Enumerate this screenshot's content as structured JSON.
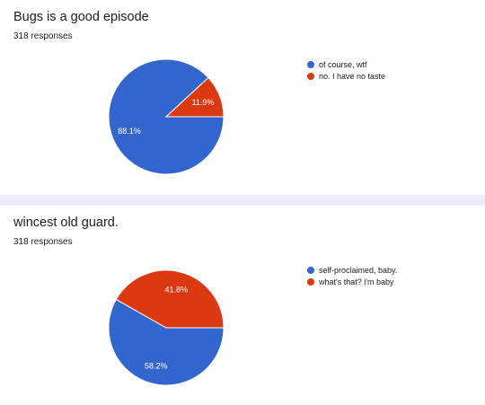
{
  "chart_data": [
    {
      "type": "pie",
      "title": "Bugs is a good episode",
      "subtitle": "318 responses",
      "legend_position": "right",
      "slices": [
        {
          "label": "of course, wtf",
          "value": 88.1,
          "value_label": "88.1%",
          "color": "#3366cc"
        },
        {
          "label": "no. I have no taste",
          "value": 11.9,
          "value_label": "11.9%",
          "color": "#dc3912"
        }
      ]
    },
    {
      "type": "pie",
      "title": "wincest old guard.",
      "subtitle": "318 responses",
      "legend_position": "right",
      "slices": [
        {
          "label": "self-proclaimed, baby.",
          "value": 58.2,
          "value_label": "58.2%",
          "color": "#3366cc"
        },
        {
          "label": "what's that? i'm baby",
          "value": 41.8,
          "value_label": "41.8%",
          "color": "#dc3912"
        }
      ]
    }
  ]
}
